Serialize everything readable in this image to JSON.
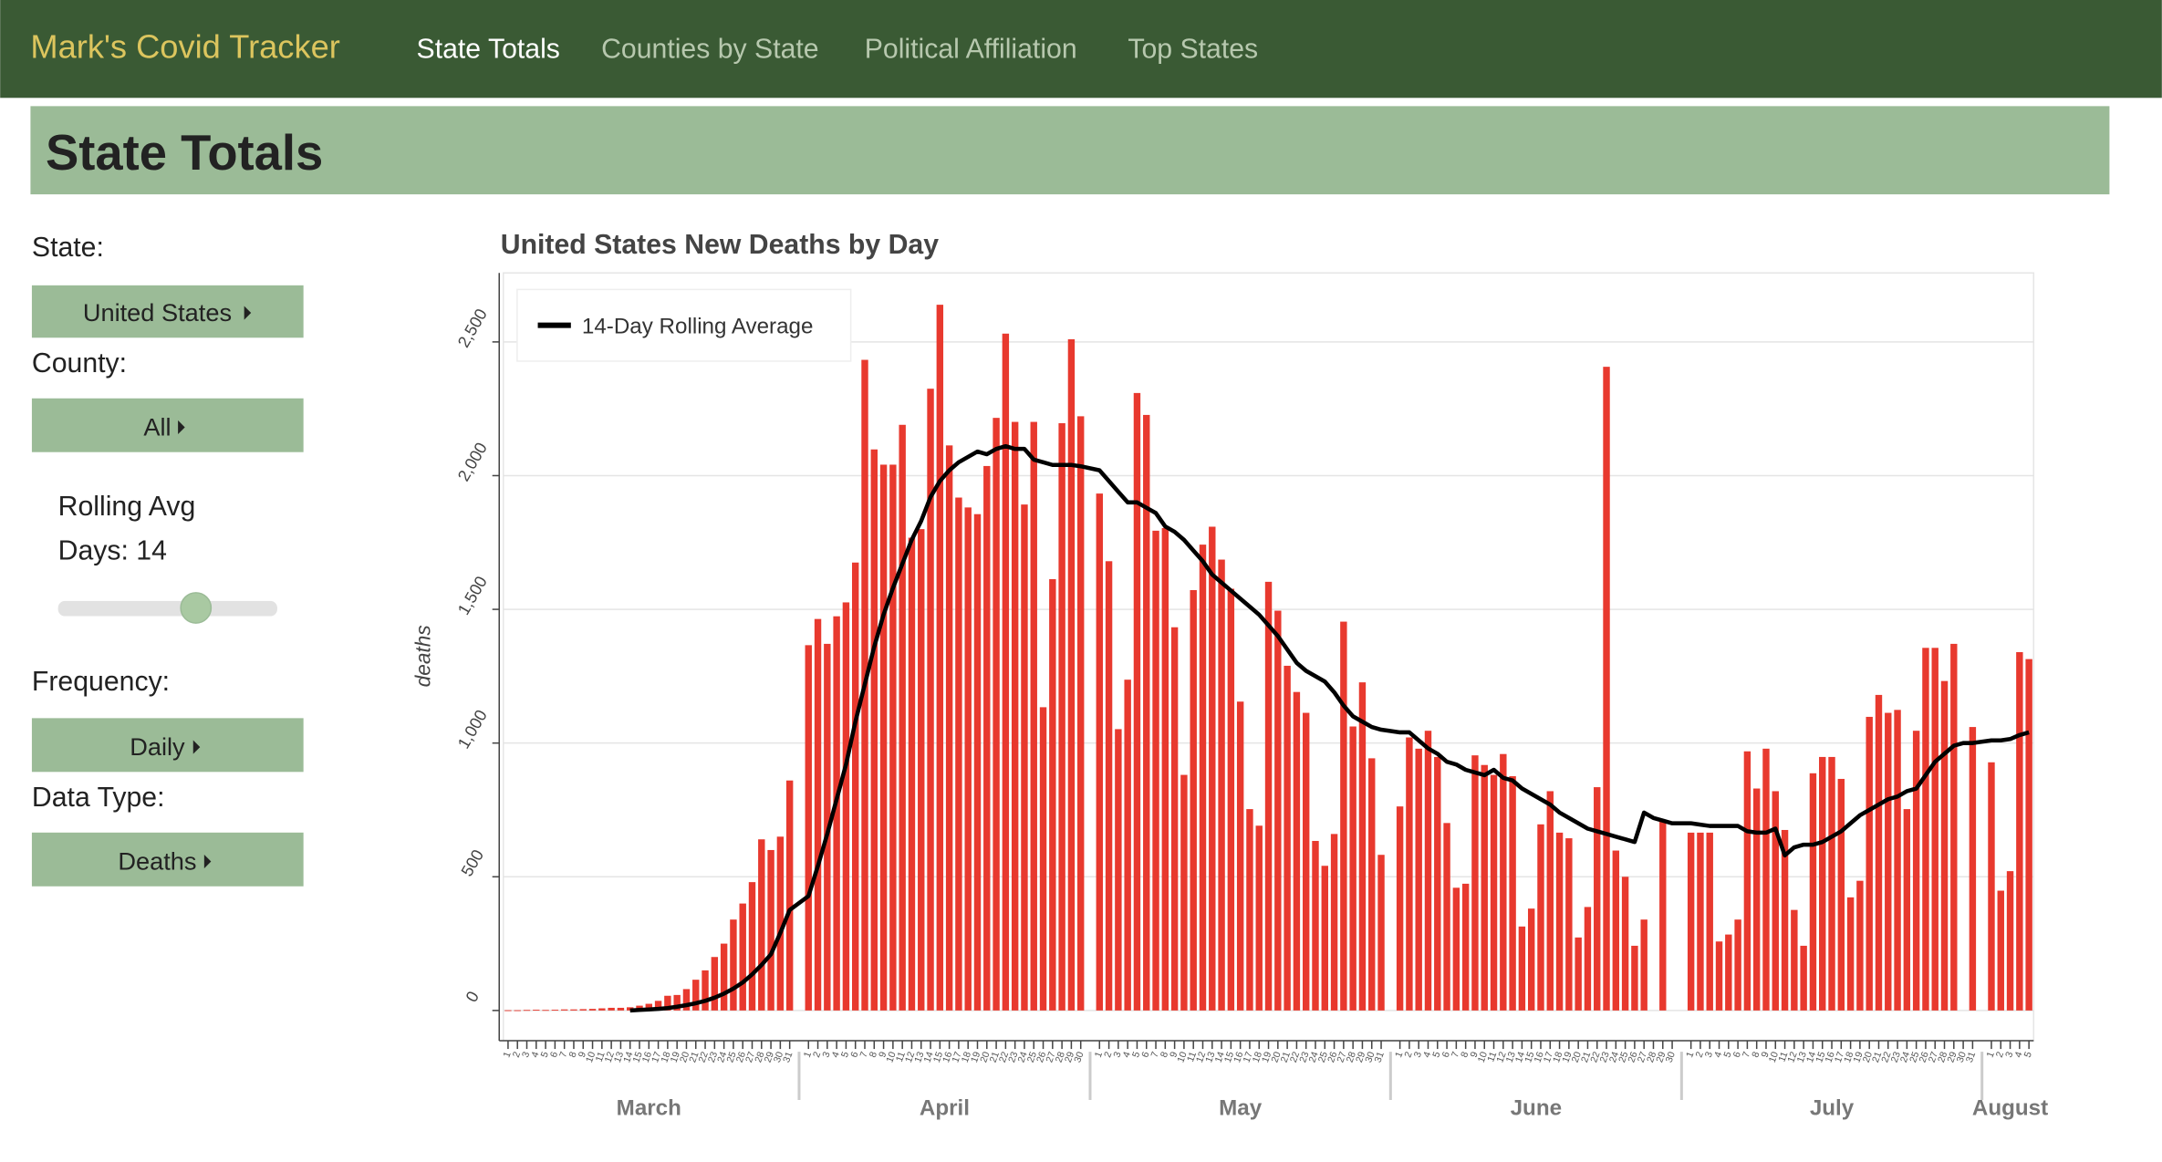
{
  "nav": {
    "brand": "Mark's Covid Tracker",
    "links": [
      "State Totals",
      "Counties by State",
      "Political Affiliation",
      "Top States"
    ]
  },
  "header": {
    "title": "State Totals"
  },
  "controls": {
    "state_label": "State:",
    "state_value": "United States",
    "county_label": "County:",
    "county_value": "All",
    "rolling_label": "Rolling Avg",
    "days_label": "Days: 14",
    "frequency_label": "Frequency:",
    "frequency_value": "Daily",
    "data_type_label": "Data Type:",
    "data_type_value": "Deaths"
  },
  "chart_data": {
    "type": "bar",
    "title": "United States New Deaths by Day",
    "y_label": "deaths",
    "months": [
      "March",
      "April",
      "May",
      "June",
      "July",
      "August"
    ],
    "categories": [
      1,
      2,
      3,
      4,
      5,
      6,
      7,
      8,
      9,
      10,
      11,
      12,
      13,
      14,
      15,
      16,
      17,
      18,
      19,
      20,
      21,
      22,
      23,
      24,
      25,
      26,
      27,
      28,
      29,
      30,
      31,
      1,
      2,
      3,
      4,
      5,
      6,
      7,
      8,
      9,
      10,
      11,
      12,
      13,
      14,
      15,
      16,
      17,
      18,
      19,
      20,
      21,
      22,
      23,
      24,
      25,
      26,
      27,
      28,
      29,
      30,
      1,
      2,
      3,
      4,
      5,
      6,
      7,
      8,
      9,
      10,
      11,
      12,
      13,
      14,
      15,
      16,
      17,
      18,
      19,
      20,
      21,
      22,
      23,
      24,
      25,
      26,
      27,
      28,
      29,
      30,
      31,
      1,
      2,
      3,
      4,
      5,
      6,
      7,
      8,
      9,
      10,
      11,
      12,
      13,
      14,
      15,
      16,
      17,
      18,
      19,
      20,
      21,
      22,
      23,
      24,
      25,
      26,
      27,
      28,
      29,
      30,
      1,
      2,
      3,
      4,
      5,
      6,
      7,
      8,
      9,
      10,
      11,
      12,
      13,
      14,
      15,
      16,
      17,
      18,
      19,
      20,
      21,
      22,
      23,
      24,
      25,
      26,
      27,
      28,
      29,
      30,
      31,
      1,
      2,
      3,
      4,
      5
    ],
    "values": [
      1,
      1,
      2,
      3,
      2,
      3,
      4,
      4,
      5,
      6,
      8,
      10,
      10,
      12,
      18,
      25,
      36,
      55,
      58,
      80,
      115,
      150,
      200,
      250,
      340,
      400,
      480,
      640,
      600,
      650,
      860,
      1366,
      1464,
      1371,
      1474,
      1526,
      1675,
      2433,
      2098,
      2041,
      2041,
      2190,
      1768,
      1800,
      2325,
      2639,
      2113,
      1918,
      1881,
      1856,
      2036,
      2216,
      2531,
      2201,
      1892,
      2201,
      1134,
      1613,
      2196,
      2510,
      2222,
      1933,
      1680,
      1052,
      1237,
      2309,
      2227,
      1794,
      1804,
      1433,
      881,
      1572,
      1742,
      1809,
      1686,
      1577,
      1155,
      753,
      691,
      1603,
      1495,
      1289,
      1191,
      1113,
      634,
      541,
      660,
      1454,
      1062,
      1227,
      943,
      582,
      763,
      1021,
      979,
      1046,
      948,
      701,
      459,
      474,
      954,
      918,
      881,
      959,
      876,
      314,
      381,
      696,
      820,
      665,
      644,
      273,
      387,
      835,
      2407,
      598,
      500,
      242,
      340,
      null,
      711,
      null,
      665,
      665,
      665,
      258,
      284,
      340,
      969,
      830,
      979,
      820,
      675,
      376,
      242,
      887,
      948,
      948,
      866,
      423,
      485,
      1098,
      1180,
      1113,
      1124,
      753,
      1046,
      1356,
      1356,
      1232,
      1371,
      null,
      1060,
      928,
      448,
      521,
      1340,
      1314
    ],
    "color": "#e8392e",
    "line": {
      "name": "14-Day Rolling Average",
      "color": "#000000",
      "values": [
        null,
        null,
        null,
        null,
        null,
        null,
        null,
        null,
        null,
        null,
        null,
        null,
        null,
        0,
        2,
        4,
        6,
        9,
        14,
        20,
        27,
        36,
        48,
        63,
        82,
        105,
        135,
        170,
        210,
        290,
        376,
        428,
        540,
        660,
        790,
        920,
        1080,
        1220,
        1360,
        1480,
        1580,
        1670,
        1760,
        1830,
        1920,
        1980,
        2020,
        2050,
        2070,
        2090,
        2080,
        2100,
        2110,
        2100,
        2100,
        2060,
        2050,
        2040,
        2040,
        2040,
        2035,
        2020,
        1980,
        1940,
        1900,
        1900,
        1880,
        1860,
        1810,
        1790,
        1760,
        1720,
        1680,
        1630,
        1600,
        1570,
        1540,
        1510,
        1480,
        1440,
        1400,
        1350,
        1300,
        1270,
        1250,
        1230,
        1190,
        1140,
        1100,
        1080,
        1060,
        1050,
        1040,
        1040,
        1010,
        980,
        960,
        930,
        920,
        900,
        890,
        880,
        900,
        870,
        860,
        830,
        810,
        790,
        770,
        740,
        720,
        700,
        680,
        670,
        660,
        650,
        640,
        630,
        740,
        720,
        710,
        700,
        700,
        695,
        690,
        690,
        690,
        690,
        670,
        665,
        665,
        680,
        580,
        610,
        620,
        620,
        630,
        650,
        670,
        700,
        730,
        750,
        770,
        790,
        800,
        820,
        830,
        880,
        930,
        960,
        990,
        1000,
        1000,
        1010,
        1010,
        1015,
        1030,
        1040
      ]
    },
    "ylim": [
      -113,
      2758
    ],
    "yticks": [
      0,
      500,
      {
        "value": 1000,
        "label": "1,000"
      },
      {
        "value": 1500,
        "label": "1,500"
      },
      {
        "value": 2000,
        "label": "2,000"
      },
      {
        "value": 2500,
        "label": "2,500"
      }
    ],
    "grid": true,
    "legend": "top-left"
  }
}
